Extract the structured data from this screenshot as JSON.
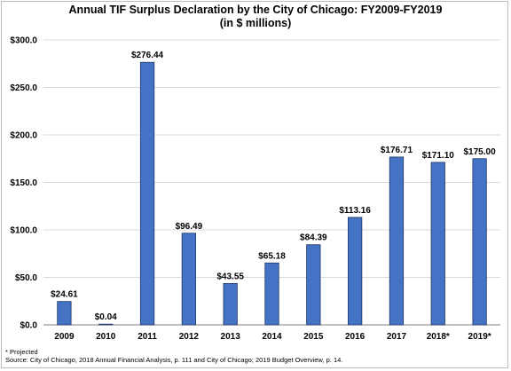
{
  "chart_data": {
    "type": "bar",
    "title": "Annual TIF Surplus Declaration by  the City of Chicago: FY2009-FY2019",
    "subtitle": "(in $ millions)",
    "xlabel": "",
    "ylabel": "",
    "categories": [
      "2009",
      "2010",
      "2011",
      "2012",
      "2013",
      "2014",
      "2015",
      "2016",
      "2017",
      "2018*",
      "2019*"
    ],
    "values": [
      24.61,
      0.04,
      276.44,
      96.49,
      43.55,
      65.18,
      84.39,
      113.16,
      176.71,
      171.1,
      175.0
    ],
    "data_labels": [
      "$24.61",
      "$0.04",
      "$276.44",
      "$96.49",
      "$43.55",
      "$65.18",
      "$84.39",
      "$113.16",
      "$176.71",
      "$171.10",
      "$175.00"
    ],
    "ylim": [
      0,
      300
    ],
    "yticks": [
      0,
      50,
      100,
      150,
      200,
      250,
      300
    ],
    "ytick_labels": [
      "$0.0",
      "$50.0",
      "$100.0",
      "$150.0",
      "$200.0",
      "$250.0",
      "$300.0"
    ],
    "grid": true,
    "legend": "none",
    "bar_color": "#4472C4",
    "bar_edge_color": "#1F3864"
  },
  "footnotes": {
    "projected": "* Projected",
    "source": "Source: City of Chicago, 2018 Annual Financial Analysis, p. 111 and City of Chicago; 2019 Budget Overview, p. 14."
  }
}
